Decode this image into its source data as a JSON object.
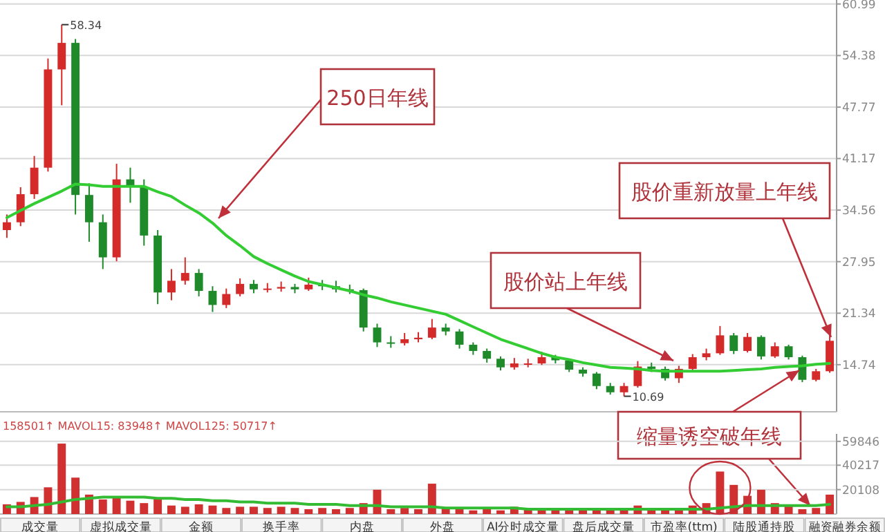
{
  "chart_data": [
    {
      "type": "candlestick",
      "categories": [
        null,
        null,
        null,
        null,
        null,
        null,
        null,
        null,
        null,
        null,
        null,
        null,
        null,
        null,
        null,
        null,
        null,
        null,
        null,
        null,
        null,
        null,
        null,
        null,
        null,
        null,
        null,
        null,
        null,
        null,
        null,
        null,
        null,
        null,
        null,
        null,
        null,
        null,
        null,
        null,
        null,
        null,
        null,
        null,
        null,
        null,
        null,
        null,
        null,
        null,
        null,
        null,
        null,
        null,
        null,
        null,
        null,
        null,
        null,
        null,
        null
      ],
      "ohlc": [
        [
          32.0,
          34.0,
          31.0,
          33.0
        ],
        [
          33.0,
          37.5,
          32.5,
          36.6
        ],
        [
          36.6,
          41.5,
          36.0,
          40.0
        ],
        [
          40.0,
          54.0,
          39.5,
          52.6
        ],
        [
          52.6,
          58.34,
          48.0,
          56.0
        ],
        [
          56.0,
          56.5,
          34.0,
          36.5
        ],
        [
          36.5,
          38.0,
          30.5,
          33.0
        ],
        [
          33.0,
          34.0,
          27.0,
          28.5
        ],
        [
          28.5,
          40.5,
          28.0,
          38.5
        ],
        [
          38.5,
          40.0,
          35.5,
          37.5
        ],
        [
          37.5,
          38.5,
          30.0,
          31.3
        ],
        [
          31.3,
          32.0,
          22.5,
          24.0
        ],
        [
          24.0,
          27.0,
          23.0,
          25.5
        ],
        [
          25.5,
          28.5,
          25.0,
          26.5
        ],
        [
          26.5,
          27.0,
          23.5,
          24.2
        ],
        [
          24.2,
          24.8,
          21.5,
          22.4
        ],
        [
          22.4,
          24.5,
          22.0,
          23.8
        ],
        [
          23.8,
          25.8,
          23.5,
          25.1
        ],
        [
          25.1,
          25.6,
          23.9,
          24.4
        ],
        [
          24.4,
          25.2,
          24.0,
          24.5
        ],
        [
          24.5,
          25.4,
          24.1,
          24.7
        ],
        [
          24.7,
          25.1,
          23.9,
          24.4
        ],
        [
          24.4,
          25.9,
          24.2,
          25.0
        ],
        [
          25.0,
          25.6,
          24.3,
          24.8
        ],
        [
          24.8,
          25.5,
          24.0,
          24.4
        ],
        [
          24.4,
          25.0,
          23.8,
          24.3
        ],
        [
          24.3,
          24.5,
          19.0,
          19.5
        ],
        [
          19.5,
          20.0,
          17.0,
          17.6
        ],
        [
          17.6,
          18.4,
          16.9,
          17.5
        ],
        [
          17.5,
          18.8,
          17.2,
          18.0
        ],
        [
          18.0,
          18.9,
          17.6,
          18.2
        ],
        [
          18.2,
          20.6,
          18.0,
          19.5
        ],
        [
          19.5,
          20.0,
          18.5,
          19.0
        ],
        [
          19.0,
          19.3,
          16.8,
          17.3
        ],
        [
          17.3,
          17.6,
          16.0,
          16.5
        ],
        [
          16.5,
          16.8,
          15.0,
          15.5
        ],
        [
          15.5,
          15.8,
          14.0,
          14.4
        ],
        [
          14.4,
          15.6,
          14.1,
          14.9
        ],
        [
          14.9,
          15.5,
          14.4,
          14.9
        ],
        [
          14.9,
          16.4,
          14.7,
          15.7
        ],
        [
          15.7,
          16.0,
          14.9,
          15.3
        ],
        [
          15.3,
          15.5,
          13.8,
          14.1
        ],
        [
          14.1,
          14.4,
          13.2,
          13.6
        ],
        [
          13.6,
          13.8,
          11.6,
          12.0
        ],
        [
          12.0,
          12.4,
          10.9,
          11.2
        ],
        [
          11.2,
          12.4,
          10.69,
          12.0
        ],
        [
          12.0,
          15.2,
          11.8,
          14.5
        ],
        [
          14.5,
          15.0,
          13.8,
          14.2
        ],
        [
          14.2,
          14.5,
          12.7,
          13.0
        ],
        [
          13.0,
          14.6,
          12.4,
          14.2
        ],
        [
          14.2,
          16.1,
          14.0,
          15.7
        ],
        [
          15.7,
          16.8,
          15.3,
          16.2
        ],
        [
          16.2,
          19.7,
          16.0,
          18.5
        ],
        [
          18.5,
          18.8,
          16.1,
          16.5
        ],
        [
          16.5,
          18.8,
          16.3,
          18.3
        ],
        [
          18.3,
          18.5,
          15.4,
          15.8
        ],
        [
          15.8,
          17.6,
          15.6,
          17.1
        ],
        [
          17.1,
          17.3,
          15.4,
          15.7
        ],
        [
          15.7,
          15.9,
          12.5,
          12.8
        ],
        [
          12.8,
          14.2,
          12.6,
          13.9
        ],
        [
          13.9,
          18.6,
          13.7,
          17.8
        ]
      ],
      "series": [
        {
          "type": "line",
          "color": "#33cc33",
          "values": [
            33.6,
            34.5,
            35.4,
            36.2,
            37.0,
            37.9,
            37.8,
            37.6,
            37.6,
            37.6,
            37.6,
            36.9,
            36.3,
            35.2,
            34.2,
            32.9,
            31.3,
            30.0,
            28.6,
            27.7,
            26.9,
            26.1,
            25.4,
            25.0,
            24.6,
            24.2,
            23.7,
            23.3,
            22.8,
            22.4,
            22.0,
            21.6,
            21.2,
            20.4,
            19.6,
            18.8,
            18.0,
            17.4,
            16.8,
            16.2,
            15.7,
            15.4,
            15.0,
            14.7,
            14.4,
            14.3,
            14.2,
            14.0,
            13.9,
            13.9,
            13.9,
            13.9,
            13.9,
            14.0,
            14.1,
            14.2,
            14.4,
            14.5,
            14.6,
            14.8,
            14.9
          ]
        }
      ],
      "ylim": [
        8.7,
        61.5
      ],
      "yticks": [
        14.74,
        21.34,
        27.95,
        34.56,
        41.17,
        47.77,
        54.38,
        60.99
      ],
      "grid": "y",
      "annotations": [
        "250日年线",
        "股价站上年线",
        "股价重新放量上年线",
        "缩量诱空破年线",
        "58.34",
        "10.69"
      ]
    },
    {
      "type": "bar",
      "categories": [
        null,
        null,
        null,
        null,
        null,
        null,
        null,
        null,
        null,
        null,
        null,
        null,
        null,
        null,
        null,
        null,
        null,
        null,
        null,
        null,
        null,
        null,
        null,
        null,
        null,
        null,
        null,
        null,
        null,
        null,
        null,
        null,
        null,
        null,
        null,
        null,
        null,
        null,
        null,
        null,
        null,
        null,
        null,
        null,
        null,
        null,
        null,
        null,
        null,
        null,
        null,
        null,
        null,
        null,
        null,
        null,
        null,
        null,
        null,
        null,
        null
      ],
      "series": [
        {
          "type": "bar",
          "color": "#d03030",
          "values": [
            8000,
            10000,
            14000,
            22000,
            58000,
            30000,
            16000,
            12000,
            14000,
            11000,
            9000,
            13000,
            7000,
            6000,
            8000,
            7000,
            5000,
            6000,
            6000,
            5000,
            6000,
            5000,
            4000,
            5000,
            4000,
            5000,
            9000,
            20000,
            4000,
            5000,
            4000,
            25000,
            5000,
            4000,
            3000,
            4000,
            3000,
            6000,
            4000,
            5000,
            3000,
            3000,
            3000,
            4000,
            5000,
            4000,
            7000,
            4000,
            3000,
            5000,
            7000,
            9000,
            35000,
            24000,
            15000,
            20000,
            9000,
            7000,
            4000,
            5000,
            16000
          ]
        },
        {
          "type": "line",
          "color": "#33bb33",
          "values": [
            6000,
            6000,
            7000,
            8000,
            10000,
            12000,
            13000,
            14000,
            14000,
            14000,
            14000,
            13000,
            13000,
            12000,
            12000,
            11000,
            11000,
            10000,
            10000,
            9000,
            9000,
            9000,
            8000,
            8000,
            8000,
            7000,
            7000,
            7000,
            6000,
            6000,
            6000,
            6000,
            5000,
            5000,
            5000,
            5000,
            5000,
            5000,
            4000,
            4000,
            4000,
            4000,
            4000,
            4000,
            4000,
            4000,
            4000,
            4000,
            4000,
            4000,
            4000,
            4000,
            5000,
            6000,
            7000,
            7000,
            7000,
            7000,
            7000,
            7000,
            8000
          ]
        }
      ],
      "ylim": [
        0,
        66000
      ],
      "yticks": [
        20108,
        40217,
        59846
      ],
      "grid": "y",
      "annotations": [
        "158501↑  MAVOL15: 83948↑  MAVOL125: 50717↑",
        "成交量",
        "虚拟成交量",
        "金额",
        "换手率",
        "内盘",
        "外盘",
        "AI分时成交量",
        "盘后成交量",
        "市盈率(ttm)",
        "陆股通持股",
        "融资融券余额"
      ]
    }
  ]
}
